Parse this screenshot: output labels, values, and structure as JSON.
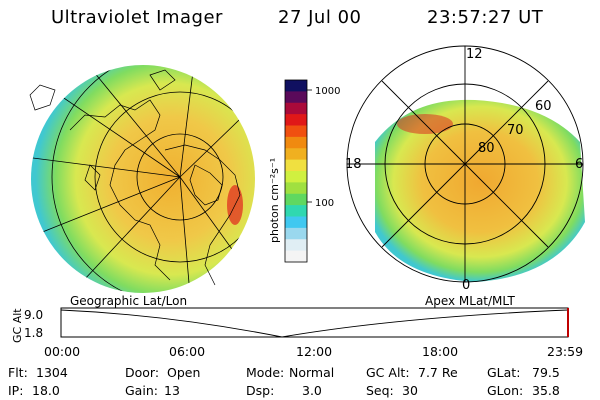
{
  "header": {
    "instrument": "Ultraviolet Imager",
    "date": "27 Jul 00",
    "time": "23:57:27 UT"
  },
  "geo_panel": {
    "label": "Geographic Lat/Lon"
  },
  "apex_panel": {
    "label": "Apex MLat/MLT",
    "lat_labels": [
      "60",
      "70",
      "80"
    ],
    "mlt_labels": [
      "12",
      "18",
      "6",
      "0"
    ]
  },
  "colorbar": {
    "unit": "photon cm⁻²s⁻¹",
    "tick_labels": [
      "1000",
      "100"
    ],
    "colors": [
      "#101060",
      "#5a0a5a",
      "#aa0a3a",
      "#e01818",
      "#f05010",
      "#f08a10",
      "#f0b020",
      "#f0e040",
      "#d0f040",
      "#a0e040",
      "#60d860",
      "#30d8b0",
      "#40c8f0",
      "#9ad8ee",
      "#e0eef4",
      "#f4f4f4"
    ]
  },
  "altitude_plot": {
    "ylabel": "GC Alt",
    "y_ticks": [
      "9.0",
      "1.8"
    ],
    "x_ticks": [
      "00:00",
      "06:00",
      "12:00",
      "18:00",
      "23:59"
    ]
  },
  "info": {
    "flt_label": "Flt:",
    "flt_value": "1304",
    "ip_label": "IP:",
    "ip_value": "18.0",
    "door_label": "Door:",
    "door_value": "Open",
    "gain_label": "Gain:",
    "gain_value": "13",
    "mode_label": "Mode:",
    "mode_value": "Normal",
    "dsp_label": "Dsp:",
    "dsp_value": "3.0",
    "gcalt_label": "GC Alt:",
    "gcalt_value": "7.7 Re",
    "seq_label": "Seq:",
    "seq_value": "30",
    "glat_label": "GLat:",
    "glat_value": "79.5",
    "glon_label": "GLon:",
    "glon_value": "35.8"
  }
}
